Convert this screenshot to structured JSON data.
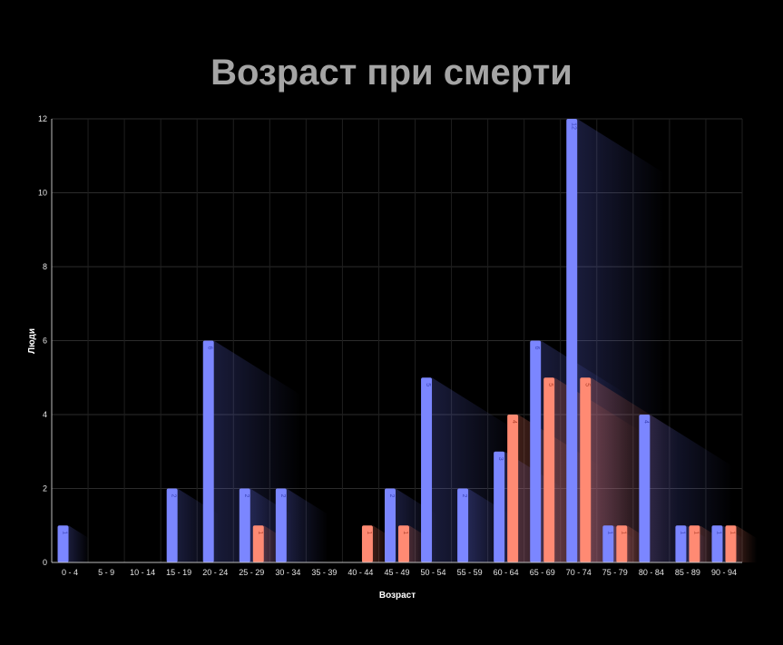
{
  "chart_data": {
    "type": "bar",
    "title": "Возраст при смерти",
    "xlabel": "Возраст",
    "ylabel": "Люди",
    "ylim": [
      0,
      12
    ],
    "yticks": [
      0,
      2,
      4,
      6,
      8,
      10,
      12
    ],
    "grid": true,
    "categories": [
      "0 - 4",
      "5 - 9",
      "10 - 14",
      "15 - 19",
      "20 - 24",
      "25 - 29",
      "30 - 34",
      "35 - 39",
      "40 - 44",
      "45 - 49",
      "50 - 54",
      "55 - 59",
      "60 - 64",
      "65 - 69",
      "70 - 74",
      "75 - 79",
      "80 - 84",
      "85 - 89",
      "90 - 94"
    ],
    "series": [
      {
        "color": "#7b86ff",
        "label_color": "#3d46b8",
        "values": [
          1,
          0,
          0,
          2,
          6,
          2,
          2,
          0,
          0,
          2,
          5,
          2,
          3,
          6,
          12,
          1,
          4,
          1,
          1
        ]
      },
      {
        "color": "#ff8a73",
        "label_color": "#b3432e",
        "values": [
          0,
          0,
          0,
          0,
          0,
          1,
          0,
          0,
          1,
          1,
          0,
          0,
          4,
          5,
          5,
          1,
          0,
          1,
          1
        ]
      }
    ]
  }
}
